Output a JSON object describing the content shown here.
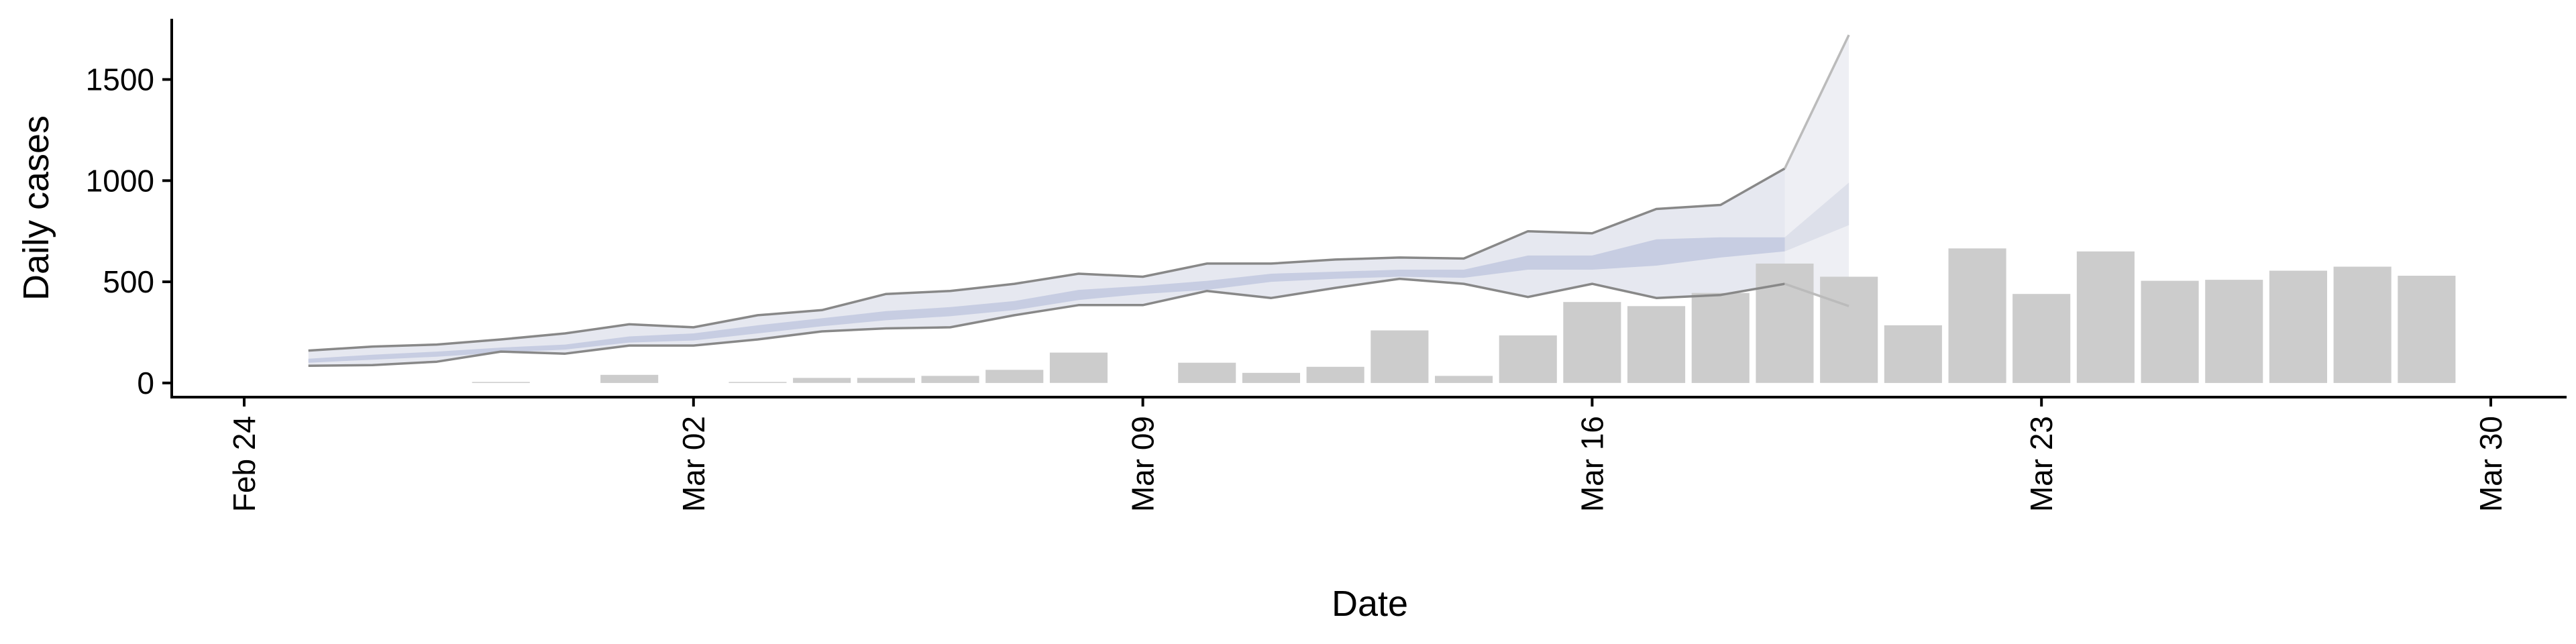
{
  "chart_data": {
    "type": "bar",
    "title": "",
    "xlabel": "Date",
    "ylabel": "Daily cases",
    "x_range": [
      "2020-02-24",
      "2020-03-30"
    ],
    "ylim": [
      -70,
      1800
    ],
    "x_ticks": [
      {
        "date": "2020-02-24",
        "label": "Feb 24"
      },
      {
        "date": "2020-03-02",
        "label": "Mar 02"
      },
      {
        "date": "2020-03-09",
        "label": "Mar 09"
      },
      {
        "date": "2020-03-16",
        "label": "Mar 16"
      },
      {
        "date": "2020-03-23",
        "label": "Mar 23"
      },
      {
        "date": "2020-03-30",
        "label": "Mar 30"
      }
    ],
    "y_ticks": [
      0,
      500,
      1000,
      1500
    ],
    "grid": false,
    "colors": {
      "bars": "#cccccc",
      "bound_lines": "#888888",
      "forecast_bound_lines": "#bbbbbb",
      "band_inner": "#c7cde2",
      "band_outer": "#e6e8f0",
      "forecast_inner": "#dde0ea",
      "forecast_outer": "#eeeff4"
    },
    "bars": [
      {
        "date": "2020-02-28",
        "value": 5
      },
      {
        "date": "2020-03-01",
        "value": 40
      },
      {
        "date": "2020-03-03",
        "value": 5
      },
      {
        "date": "2020-03-04",
        "value": 25
      },
      {
        "date": "2020-03-05",
        "value": 25
      },
      {
        "date": "2020-03-06",
        "value": 35
      },
      {
        "date": "2020-03-07",
        "value": 65
      },
      {
        "date": "2020-03-08",
        "value": 150
      },
      {
        "date": "2020-03-10",
        "value": 100
      },
      {
        "date": "2020-03-11",
        "value": 50
      },
      {
        "date": "2020-03-12",
        "value": 80
      },
      {
        "date": "2020-03-13",
        "value": 260
      },
      {
        "date": "2020-03-14",
        "value": 35
      },
      {
        "date": "2020-03-15",
        "value": 235
      },
      {
        "date": "2020-03-16",
        "value": 400
      },
      {
        "date": "2020-03-17",
        "value": 380
      },
      {
        "date": "2020-03-18",
        "value": 445
      },
      {
        "date": "2020-03-19",
        "value": 590
      },
      {
        "date": "2020-03-20",
        "value": 525
      },
      {
        "date": "2020-03-21",
        "value": 285
      },
      {
        "date": "2020-03-22",
        "value": 665
      },
      {
        "date": "2020-03-23",
        "value": 440
      },
      {
        "date": "2020-03-24",
        "value": 650
      },
      {
        "date": "2020-03-25",
        "value": 505
      },
      {
        "date": "2020-03-26",
        "value": 510
      },
      {
        "date": "2020-03-27",
        "value": 555
      },
      {
        "date": "2020-03-28",
        "value": 575
      },
      {
        "date": "2020-03-29",
        "value": 530
      }
    ],
    "estimate_band": {
      "dates": [
        "2020-02-25",
        "2020-02-26",
        "2020-02-27",
        "2020-02-28",
        "2020-02-29",
        "2020-03-01",
        "2020-03-02",
        "2020-03-03",
        "2020-03-04",
        "2020-03-05",
        "2020-03-06",
        "2020-03-07",
        "2020-03-08",
        "2020-03-09",
        "2020-03-10",
        "2020-03-11",
        "2020-03-12",
        "2020-03-13",
        "2020-03-14",
        "2020-03-15",
        "2020-03-16",
        "2020-03-17",
        "2020-03-18",
        "2020-03-19"
      ],
      "upper": [
        160,
        180,
        190,
        215,
        245,
        290,
        275,
        335,
        360,
        440,
        455,
        490,
        540,
        525,
        590,
        590,
        610,
        620,
        615,
        750,
        740,
        860,
        880,
        1060
      ],
      "lower": [
        85,
        88,
        105,
        155,
        145,
        185,
        185,
        215,
        255,
        270,
        275,
        335,
        385,
        385,
        455,
        420,
        470,
        515,
        490,
        425,
        490,
        420,
        435,
        490
      ],
      "inner_upper": [
        120,
        140,
        155,
        175,
        190,
        230,
        245,
        285,
        320,
        355,
        375,
        405,
        460,
        480,
        505,
        540,
        550,
        560,
        560,
        630,
        630,
        710,
        720,
        720
      ],
      "inner_lower": [
        100,
        115,
        130,
        150,
        165,
        200,
        210,
        245,
        280,
        310,
        330,
        360,
        410,
        440,
        460,
        500,
        515,
        525,
        520,
        560,
        560,
        580,
        620,
        650
      ]
    },
    "forecast_band": {
      "dates": [
        "2020-03-19",
        "2020-03-20"
      ],
      "upper": [
        1060,
        1720
      ],
      "lower": [
        490,
        380
      ],
      "inner_upper": [
        720,
        990
      ],
      "inner_lower": [
        650,
        780
      ]
    }
  }
}
